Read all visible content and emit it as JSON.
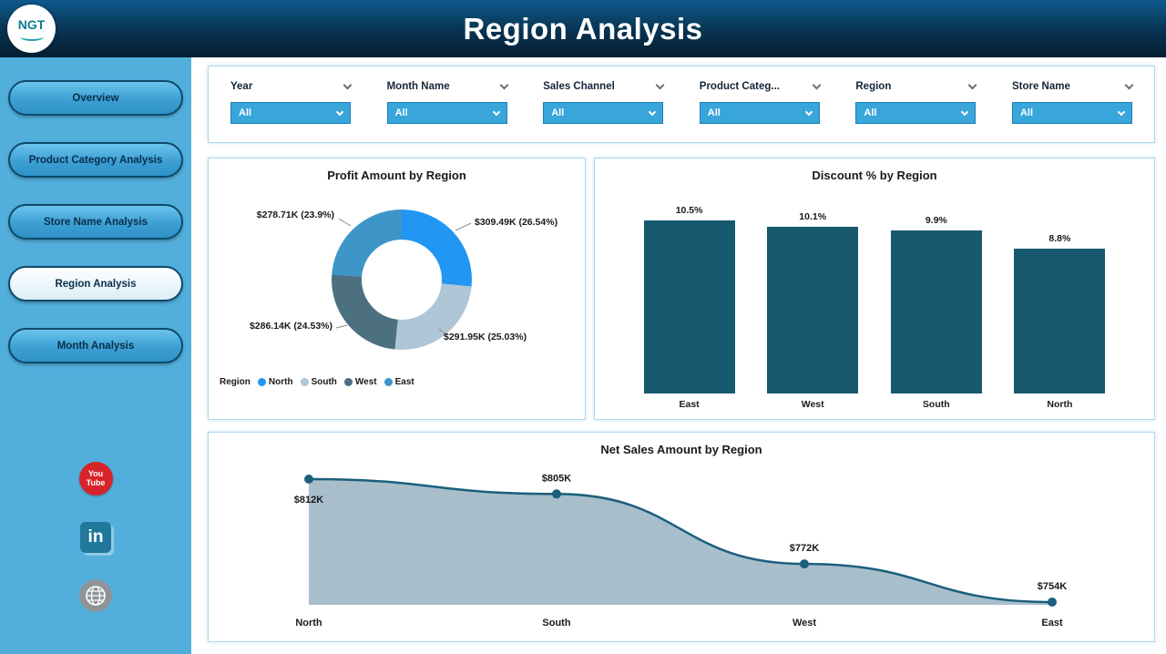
{
  "header": {
    "title": "Region Analysis",
    "logo_text": "NGT"
  },
  "sidebar": {
    "items": [
      {
        "label": "Overview",
        "active": false
      },
      {
        "label": "Product Category Analysis",
        "active": false
      },
      {
        "label": "Store Name Analysis",
        "active": false
      },
      {
        "label": "Region Analysis",
        "active": true
      },
      {
        "label": "Month Analysis",
        "active": false
      }
    ],
    "social": {
      "youtube_line1": "You",
      "youtube_line2": "Tube",
      "linkedin_text": "in"
    }
  },
  "filters": [
    {
      "label": "Year",
      "value": "All"
    },
    {
      "label": "Month Name",
      "value": "All"
    },
    {
      "label": "Sales Channel",
      "value": "All"
    },
    {
      "label": "Product Categ...",
      "value": "All"
    },
    {
      "label": "Region",
      "value": "All"
    },
    {
      "label": "Store Name",
      "value": "All"
    }
  ],
  "colors": {
    "header_bg": "#07324F",
    "sidebar_bg": "#52AFDC",
    "slicer_fill": "#38A5DB",
    "bar_fill": "#17596F",
    "line_color": "#1B5F7D",
    "area_fill": "#A9BECB"
  },
  "chart_data": [
    {
      "type": "pie",
      "title": "Profit Amount by Region",
      "legend_title": "Region",
      "legend_position": "bottom-left",
      "slices": [
        {
          "label": "North",
          "value": 309.49,
          "pct": 26.54,
          "display": "$309.49K (26.54%)",
          "color": "#2196F3"
        },
        {
          "label": "South",
          "value": 291.95,
          "pct": 25.03,
          "display": "$291.95K (25.03%)",
          "color": "#AEC6D6"
        },
        {
          "label": "West",
          "value": 286.14,
          "pct": 24.53,
          "display": "$286.14K (24.53%)",
          "color": "#4C7080"
        },
        {
          "label": "East",
          "value": 278.71,
          "pct": 23.9,
          "display": "$278.71K (23.9%)",
          "color": "#3E96C8"
        }
      ]
    },
    {
      "type": "bar",
      "title": "Discount % by Region",
      "categories": [
        "East",
        "West",
        "South",
        "North"
      ],
      "values": [
        10.5,
        10.1,
        9.9,
        8.8
      ],
      "value_labels": [
        "10.5%",
        "10.1%",
        "9.9%",
        "8.8%"
      ],
      "ylim": [
        0,
        10.5
      ],
      "grid": false,
      "bar_color": "#17596F"
    },
    {
      "type": "area",
      "title": "Net Sales Amount by Region",
      "categories": [
        "North",
        "South",
        "West",
        "East"
      ],
      "values": [
        812,
        805,
        772,
        754
      ],
      "value_labels": [
        "$812K",
        "$805K",
        "$772K",
        "$754K"
      ],
      "grid": false,
      "line_color": "#1B5F7D",
      "fill_color": "#A9BECB"
    }
  ]
}
